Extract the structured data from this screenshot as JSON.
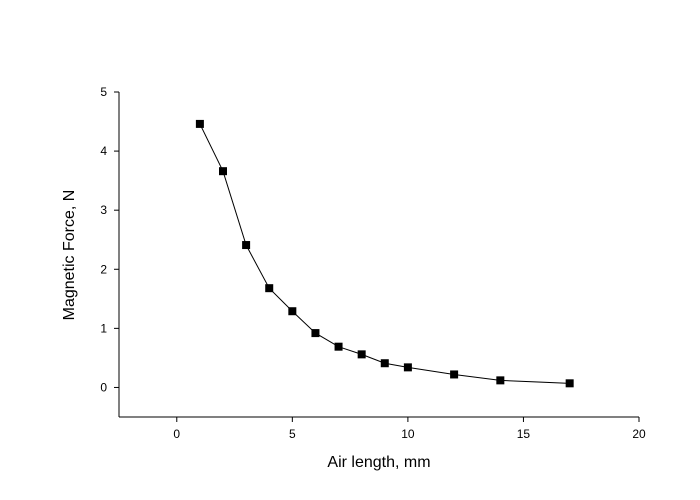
{
  "chart_data": {
    "type": "line",
    "x_label": "Air length, mm",
    "y_label": "Magnetic Force, N",
    "x": [
      1,
      2,
      3,
      4,
      5,
      6,
      7,
      8,
      9,
      10,
      12,
      14,
      17
    ],
    "series": [
      {
        "name": "Magnetic Force",
        "color": "#000000",
        "values": [
          4.46,
          3.66,
          2.41,
          1.68,
          1.29,
          0.92,
          0.69,
          0.56,
          0.41,
          0.34,
          0.22,
          0.12,
          0.07
        ]
      }
    ],
    "xlim": [
      -2.5,
      20
    ],
    "xticks": [
      0,
      5,
      10,
      15,
      20
    ],
    "ylim": [
      -0.5,
      5
    ],
    "yticks": [
      0,
      1,
      2,
      3,
      4,
      5
    ],
    "grid": false
  }
}
